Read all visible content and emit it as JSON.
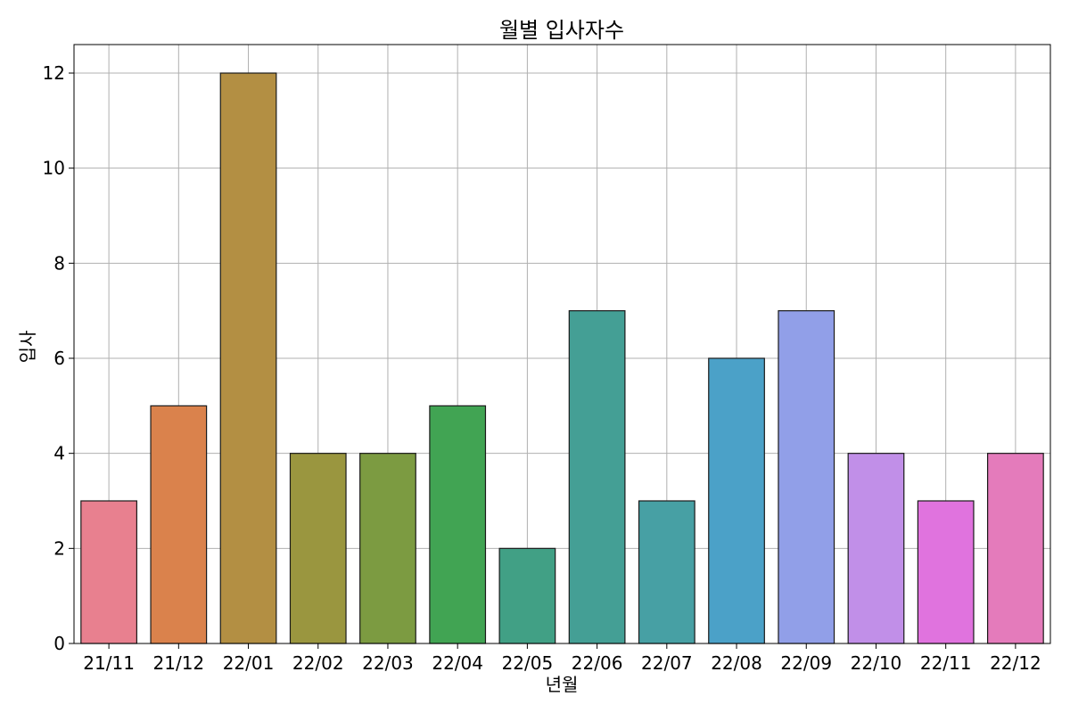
{
  "chart_data": {
    "type": "bar",
    "title": "월별 입사자수",
    "xlabel": "년월",
    "ylabel": "입사",
    "categories": [
      "21/11",
      "21/12",
      "22/01",
      "22/02",
      "22/03",
      "22/04",
      "22/05",
      "22/06",
      "22/07",
      "22/08",
      "22/09",
      "22/10",
      "22/11",
      "22/12"
    ],
    "values": [
      3,
      5,
      12,
      4,
      4,
      5,
      2,
      7,
      3,
      6,
      7,
      4,
      3,
      4
    ],
    "colors": [
      "#e8808f",
      "#da824c",
      "#b38f43",
      "#9a963f",
      "#7c9b41",
      "#41a453",
      "#41a085",
      "#449f95",
      "#47a0a4",
      "#4ba1c8",
      "#919fe8",
      "#c18fe8",
      "#e073de",
      "#e47bbb"
    ],
    "ylim": [
      0,
      12.6
    ],
    "yticks": [
      0,
      2,
      4,
      6,
      8,
      10,
      12
    ],
    "grid": true,
    "legend": "none"
  }
}
